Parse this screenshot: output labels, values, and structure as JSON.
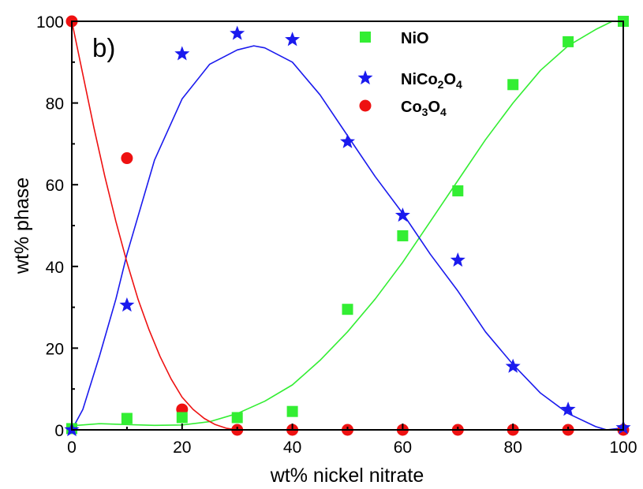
{
  "chart_data": {
    "type": "scatter",
    "panel_label": "b)",
    "xlabel": "wt% nickel nitrate",
    "ylabel": "wt% phase",
    "xlim": [
      0,
      100
    ],
    "ylim": [
      0,
      100
    ],
    "xticks": [
      0,
      20,
      40,
      60,
      80,
      100
    ],
    "yticks": [
      0,
      20,
      40,
      60,
      80,
      100
    ],
    "grid": false,
    "legend_position": "top-right",
    "series": [
      {
        "name": "NiO",
        "marker": "square",
        "color": "#33ee33",
        "x": [
          0,
          10,
          20,
          30,
          40,
          50,
          60,
          70,
          80,
          90,
          100
        ],
        "y": [
          0.3,
          2.8,
          3,
          3,
          4.5,
          29.5,
          47.5,
          58.5,
          84.5,
          95,
          100
        ],
        "fit": {
          "x": [
            0,
            5,
            10,
            15,
            20,
            25,
            30,
            35,
            40,
            45,
            50,
            55,
            60,
            65,
            70,
            75,
            80,
            85,
            90,
            95,
            98,
            100
          ],
          "y": [
            1,
            1.5,
            1.3,
            1.1,
            1.2,
            2,
            4,
            7,
            11,
            17,
            24,
            32,
            41,
            51,
            61,
            71,
            80,
            88,
            94,
            98,
            100,
            100
          ]
        }
      },
      {
        "name": "NiCo2O4",
        "name_parts": [
          "NiCo",
          "2",
          "O",
          "4"
        ],
        "marker": "star",
        "color": "#1a1aee",
        "x": [
          0,
          10,
          20,
          30,
          40,
          50,
          60,
          70,
          80,
          90,
          100
        ],
        "y": [
          0,
          30.5,
          92,
          97,
          95.5,
          70.5,
          52.5,
          41.5,
          15.5,
          5,
          0.5
        ],
        "fit": {
          "x": [
            0,
            2,
            5,
            8,
            10,
            15,
            20,
            25,
            30,
            33,
            35,
            40,
            45,
            50,
            55,
            60,
            65,
            70,
            75,
            80,
            85,
            90,
            95,
            97,
            100
          ],
          "y": [
            0,
            5,
            18,
            32,
            43,
            66,
            81,
            89.5,
            93,
            94,
            93.5,
            90,
            82,
            72,
            62,
            53,
            43,
            34,
            24,
            16,
            9,
            4,
            0.8,
            0,
            0.5
          ]
        }
      },
      {
        "name": "Co3O4",
        "name_parts": [
          "Co",
          "3",
          "O",
          "4"
        ],
        "marker": "circle",
        "color": "#ee1111",
        "x": [
          0,
          10,
          20,
          30,
          40,
          50,
          60,
          70,
          80,
          90,
          100
        ],
        "y": [
          100,
          66.5,
          5,
          0,
          0,
          0,
          0,
          0,
          0,
          0,
          0
        ],
        "fit": {
          "x": [
            0,
            2,
            4,
            6,
            8,
            10,
            12,
            14,
            16,
            18,
            20,
            22,
            24,
            26,
            28,
            30
          ],
          "y": [
            100,
            87,
            74,
            62,
            51,
            41,
            32,
            24.5,
            18,
            12.5,
            8,
            5,
            2.8,
            1.3,
            0.4,
            0
          ]
        }
      }
    ]
  }
}
